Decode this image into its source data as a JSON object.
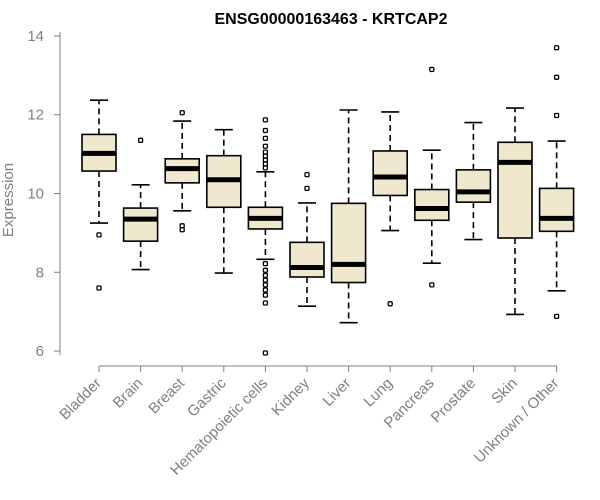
{
  "chart_data": {
    "type": "boxplot",
    "title": "ENSG00000163463 - KRTCAP2",
    "xlabel": "",
    "ylabel": "Expression",
    "ylim": [
      5.9,
      14.1
    ],
    "yticks": [
      6,
      8,
      10,
      12,
      14
    ],
    "ytick_labels": [
      "6",
      "8",
      "10",
      "12",
      "14"
    ],
    "fill_color": "#efe8cf",
    "categories": [
      "Bladder",
      "Brain",
      "Breast",
      "Gastric",
      "Hematopoietic cells",
      "Kidney",
      "Liver",
      "Lung",
      "Pancreas",
      "Prostate",
      "Skin",
      "Unknown / Other"
    ],
    "boxes": [
      {
        "category": "Bladder",
        "whisker_low": 9.25,
        "q1": 10.57,
        "median": 11.02,
        "q3": 11.5,
        "whisker_high": 12.37,
        "outliers": [
          8.95,
          7.6
        ]
      },
      {
        "category": "Brain",
        "whisker_low": 8.07,
        "q1": 8.79,
        "median": 9.35,
        "q3": 9.63,
        "whisker_high": 10.22,
        "outliers": [
          11.35
        ]
      },
      {
        "category": "Breast",
        "whisker_low": 9.56,
        "q1": 10.27,
        "median": 10.63,
        "q3": 10.88,
        "whisker_high": 11.84,
        "outliers": [
          12.05,
          9.18,
          9.08
        ]
      },
      {
        "category": "Gastric",
        "whisker_low": 7.98,
        "q1": 9.65,
        "median": 10.35,
        "q3": 10.96,
        "whisker_high": 11.62,
        "outliers": []
      },
      {
        "category": "Hematopoietic cells",
        "whisker_low": 8.33,
        "q1": 9.1,
        "median": 9.37,
        "q3": 9.65,
        "whisker_high": 10.55,
        "outliers": [
          11.87,
          11.6,
          11.4,
          11.2,
          11.05,
          10.95,
          10.85,
          10.75,
          10.65,
          8.22,
          8.05,
          7.92,
          7.8,
          7.68,
          7.55,
          7.42,
          7.22,
          5.95
        ]
      },
      {
        "category": "Kidney",
        "whisker_low": 7.14,
        "q1": 7.88,
        "median": 8.12,
        "q3": 8.76,
        "whisker_high": 9.76,
        "outliers": [
          10.48,
          10.13
        ]
      },
      {
        "category": "Liver",
        "whisker_low": 6.72,
        "q1": 7.74,
        "median": 8.2,
        "q3": 9.75,
        "whisker_high": 12.12,
        "outliers": []
      },
      {
        "category": "Lung",
        "whisker_low": 9.06,
        "q1": 9.95,
        "median": 10.42,
        "q3": 11.08,
        "whisker_high": 12.07,
        "outliers": [
          7.2
        ]
      },
      {
        "category": "Pancreas",
        "whisker_low": 8.23,
        "q1": 9.32,
        "median": 9.62,
        "q3": 10.1,
        "whisker_high": 11.1,
        "outliers": [
          13.15,
          7.68
        ]
      },
      {
        "category": "Prostate",
        "whisker_low": 8.83,
        "q1": 9.78,
        "median": 10.04,
        "q3": 10.6,
        "whisker_high": 11.8,
        "outliers": []
      },
      {
        "category": "Skin",
        "whisker_low": 6.93,
        "q1": 8.87,
        "median": 10.79,
        "q3": 11.3,
        "whisker_high": 12.17,
        "outliers": []
      },
      {
        "category": "Unknown / Other",
        "whisker_low": 7.53,
        "q1": 9.04,
        "median": 9.37,
        "q3": 10.13,
        "whisker_high": 11.33,
        "outliers": [
          13.7,
          12.95,
          11.98,
          6.88
        ]
      }
    ]
  }
}
